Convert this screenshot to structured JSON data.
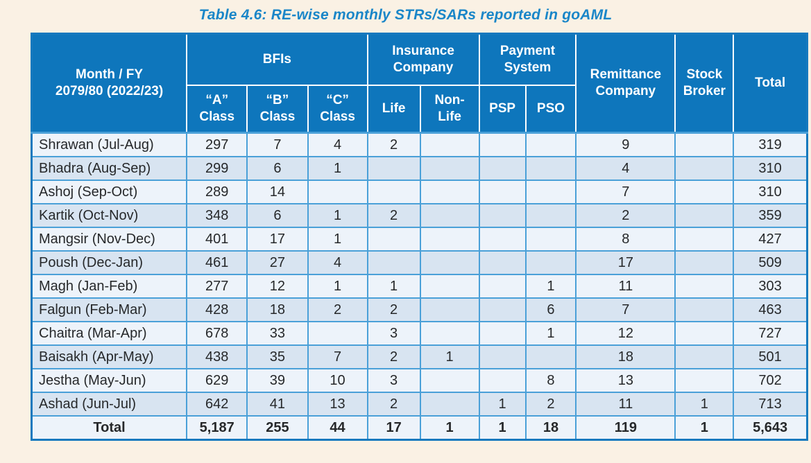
{
  "title": "Table 4.6: RE-wise monthly STRs/SARs reported in goAML",
  "colors": {
    "page_bg": "#FAF1E4",
    "header_bg": "#0E76BC",
    "header_text": "#FFFFFF",
    "row_odd_bg": "#EDF3FA",
    "row_even_bg": "#D8E4F1",
    "grid_border": "#4AA0D8",
    "outer_border": "#1679BE",
    "title_text": "#1A86C8",
    "body_text": "#26282A"
  },
  "table": {
    "header": {
      "month_fy": "Month / FY\n2079/80 (2022/23)",
      "groups": {
        "bfis": "BFIs",
        "insurance": "Insurance\nCompany",
        "payment": "Payment\nSystem"
      },
      "remittance": "Remittance\nCompany",
      "stock_broker": "Stock\nBroker",
      "total": "Total",
      "subcolumns": [
        "“A”\nClass",
        "“B”\nClass",
        "“C”\nClass",
        "Life",
        "Non-\nLife",
        "PSP",
        "PSO"
      ]
    },
    "rows": [
      {
        "cells": [
          "Shrawan (Jul-Aug)",
          "297",
          "7",
          "4",
          "2",
          "",
          "",
          "",
          "9",
          "",
          "319"
        ]
      },
      {
        "cells": [
          "Bhadra (Aug-Sep)",
          "299",
          "6",
          "1",
          "",
          "",
          "",
          "",
          "4",
          "",
          "310"
        ]
      },
      {
        "cells": [
          "Ashoj (Sep-Oct)",
          "289",
          "14",
          "",
          "",
          "",
          "",
          "",
          "7",
          "",
          "310"
        ]
      },
      {
        "cells": [
          "Kartik (Oct-Nov)",
          "348",
          "6",
          "1",
          "2",
          "",
          "",
          "",
          "2",
          "",
          "359"
        ]
      },
      {
        "cells": [
          "Mangsir (Nov-Dec)",
          "401",
          "17",
          "1",
          "",
          "",
          "",
          "",
          "8",
          "",
          "427"
        ]
      },
      {
        "cells": [
          "Poush (Dec-Jan)",
          "461",
          "27",
          "4",
          "",
          "",
          "",
          "",
          "17",
          "",
          "509"
        ]
      },
      {
        "cells": [
          "Magh (Jan-Feb)",
          "277",
          "12",
          "1",
          "1",
          "",
          "",
          "1",
          "11",
          "",
          "303"
        ]
      },
      {
        "cells": [
          "Falgun (Feb-Mar)",
          "428",
          "18",
          "2",
          "2",
          "",
          "",
          "6",
          "7",
          "",
          "463"
        ]
      },
      {
        "cells": [
          "Chaitra (Mar-Apr)",
          "678",
          "33",
          "",
          "3",
          "",
          "",
          "1",
          "12",
          "",
          "727"
        ]
      },
      {
        "cells": [
          "Baisakh (Apr-May)",
          "438",
          "35",
          "7",
          "2",
          "1",
          "",
          "",
          "18",
          "",
          "501"
        ]
      },
      {
        "cells": [
          "Jestha (May-Jun)",
          "629",
          "39",
          "10",
          "3",
          "",
          "",
          "8",
          "13",
          "",
          "702"
        ]
      },
      {
        "cells": [
          "Ashad (Jun-Jul)",
          "642",
          "41",
          "13",
          "2",
          "",
          "1",
          "2",
          "11",
          "1",
          "713"
        ]
      }
    ],
    "total_row": {
      "cells": [
        "Total",
        "5,187",
        "255",
        "44",
        "17",
        "1",
        "1",
        "18",
        "119",
        "1",
        "5,643"
      ]
    }
  }
}
